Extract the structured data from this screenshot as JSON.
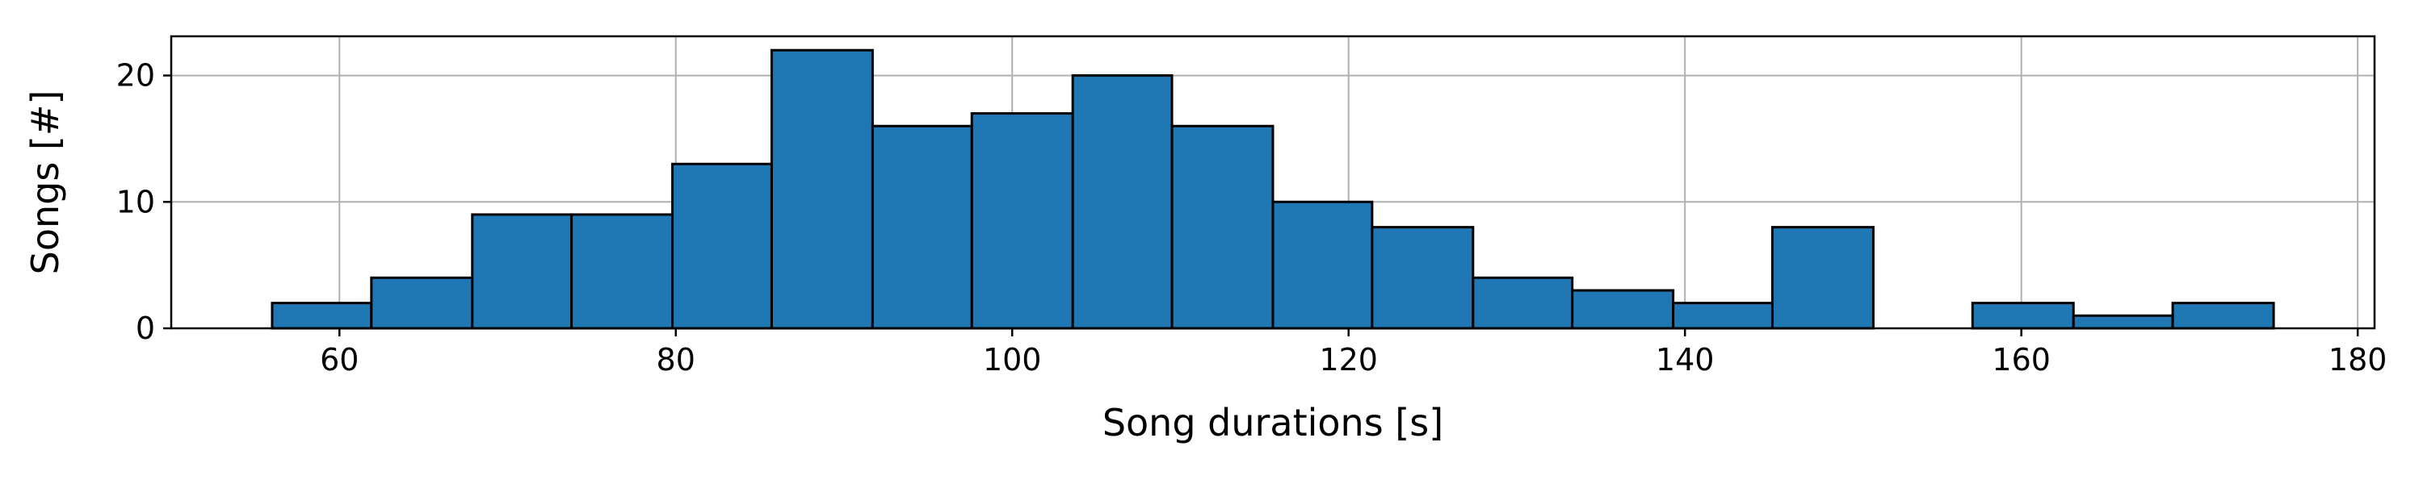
{
  "chart_data": {
    "type": "bar",
    "xlabel": "Song durations [s]",
    "ylabel": "Songs [#]",
    "xlim": [
      50,
      181
    ],
    "ylim": [
      0,
      23.1
    ],
    "xticks": [
      60,
      80,
      100,
      120,
      140,
      160,
      180
    ],
    "yticks": [
      0,
      10,
      20
    ],
    "grid": true,
    "bar_color": "#1f77b4",
    "edge_color": "#000000",
    "bins": [
      {
        "start": 56.0,
        "end": 61.9,
        "count": 2
      },
      {
        "start": 61.9,
        "end": 67.9,
        "count": 4
      },
      {
        "start": 67.9,
        "end": 73.8,
        "count": 9
      },
      {
        "start": 73.8,
        "end": 79.8,
        "count": 9
      },
      {
        "start": 79.8,
        "end": 85.7,
        "count": 13
      },
      {
        "start": 85.7,
        "end": 91.7,
        "count": 22
      },
      {
        "start": 91.7,
        "end": 97.6,
        "count": 16
      },
      {
        "start": 97.6,
        "end": 103.6,
        "count": 17
      },
      {
        "start": 103.6,
        "end": 109.5,
        "count": 20
      },
      {
        "start": 109.5,
        "end": 115.5,
        "count": 16
      },
      {
        "start": 115.5,
        "end": 121.4,
        "count": 10
      },
      {
        "start": 121.4,
        "end": 127.4,
        "count": 8
      },
      {
        "start": 127.4,
        "end": 133.3,
        "count": 4
      },
      {
        "start": 133.3,
        "end": 139.3,
        "count": 3
      },
      {
        "start": 139.3,
        "end": 145.2,
        "count": 2
      },
      {
        "start": 145.2,
        "end": 151.2,
        "count": 8
      },
      {
        "start": 151.2,
        "end": 157.1,
        "count": 0
      },
      {
        "start": 157.1,
        "end": 163.1,
        "count": 2
      },
      {
        "start": 163.1,
        "end": 169.0,
        "count": 1
      },
      {
        "start": 169.0,
        "end": 175.0,
        "count": 2
      }
    ]
  }
}
